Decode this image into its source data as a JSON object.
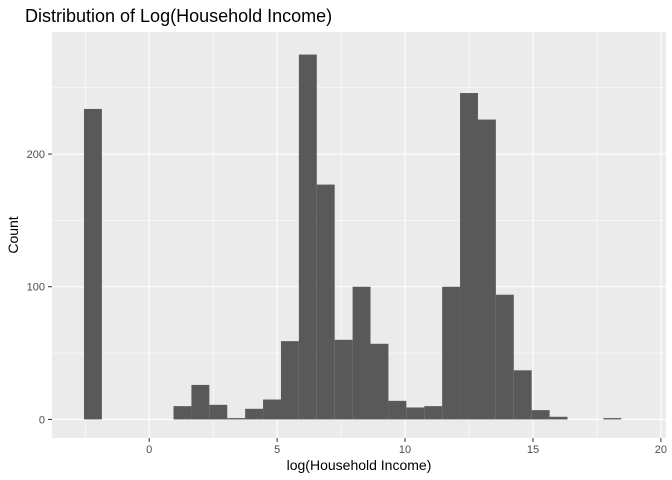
{
  "chart_data": {
    "type": "bar",
    "subtype": "histogram",
    "title": "Distribution of Log(Household Income)",
    "xlabel": "log(Household Income)",
    "ylabel": "Count",
    "xlim": [
      -3.8,
      20.2
    ],
    "ylim": [
      -14,
      292
    ],
    "x_ticks": [
      0,
      5,
      10,
      15,
      20
    ],
    "y_ticks": [
      0,
      100,
      200
    ],
    "grid": true,
    "legend": "none",
    "bin_width": 0.7,
    "bins": [
      {
        "x0": -2.55,
        "x1": -1.85,
        "count": 234
      },
      {
        "x0": -1.85,
        "x1": -1.15,
        "count": 0
      },
      {
        "x0": -1.15,
        "x1": -0.45,
        "count": 0
      },
      {
        "x0": -0.45,
        "x1": 0.25,
        "count": 0
      },
      {
        "x0": 0.25,
        "x1": 0.95,
        "count": 0
      },
      {
        "x0": 0.95,
        "x1": 1.65,
        "count": 10
      },
      {
        "x0": 1.65,
        "x1": 2.35,
        "count": 26
      },
      {
        "x0": 2.35,
        "x1": 3.05,
        "count": 11
      },
      {
        "x0": 3.05,
        "x1": 3.75,
        "count": 1
      },
      {
        "x0": 3.75,
        "x1": 4.45,
        "count": 8
      },
      {
        "x0": 4.45,
        "x1": 5.15,
        "count": 15
      },
      {
        "x0": 5.15,
        "x1": 5.85,
        "count": 59
      },
      {
        "x0": 5.85,
        "x1": 6.55,
        "count": 275
      },
      {
        "x0": 6.55,
        "x1": 7.25,
        "count": 177
      },
      {
        "x0": 7.25,
        "x1": 7.95,
        "count": 60
      },
      {
        "x0": 7.95,
        "x1": 8.65,
        "count": 100
      },
      {
        "x0": 8.65,
        "x1": 9.35,
        "count": 57
      },
      {
        "x0": 9.35,
        "x1": 10.05,
        "count": 14
      },
      {
        "x0": 10.05,
        "x1": 10.75,
        "count": 9
      },
      {
        "x0": 10.75,
        "x1": 11.45,
        "count": 10
      },
      {
        "x0": 11.45,
        "x1": 12.15,
        "count": 100
      },
      {
        "x0": 12.15,
        "x1": 12.85,
        "count": 246
      },
      {
        "x0": 12.85,
        "x1": 13.55,
        "count": 226
      },
      {
        "x0": 13.55,
        "x1": 14.25,
        "count": 94
      },
      {
        "x0": 14.25,
        "x1": 14.95,
        "count": 37
      },
      {
        "x0": 14.95,
        "x1": 15.65,
        "count": 7
      },
      {
        "x0": 15.65,
        "x1": 16.35,
        "count": 2
      },
      {
        "x0": 16.35,
        "x1": 17.05,
        "count": 0
      },
      {
        "x0": 17.05,
        "x1": 17.75,
        "count": 0
      },
      {
        "x0": 17.75,
        "x1": 18.45,
        "count": 1
      }
    ],
    "colors": {
      "bar": "#595959",
      "panel": "#ebebeb",
      "grid_major": "#ffffff",
      "tick_text": "#4d4d4d",
      "tick_mark": "#333333"
    }
  }
}
